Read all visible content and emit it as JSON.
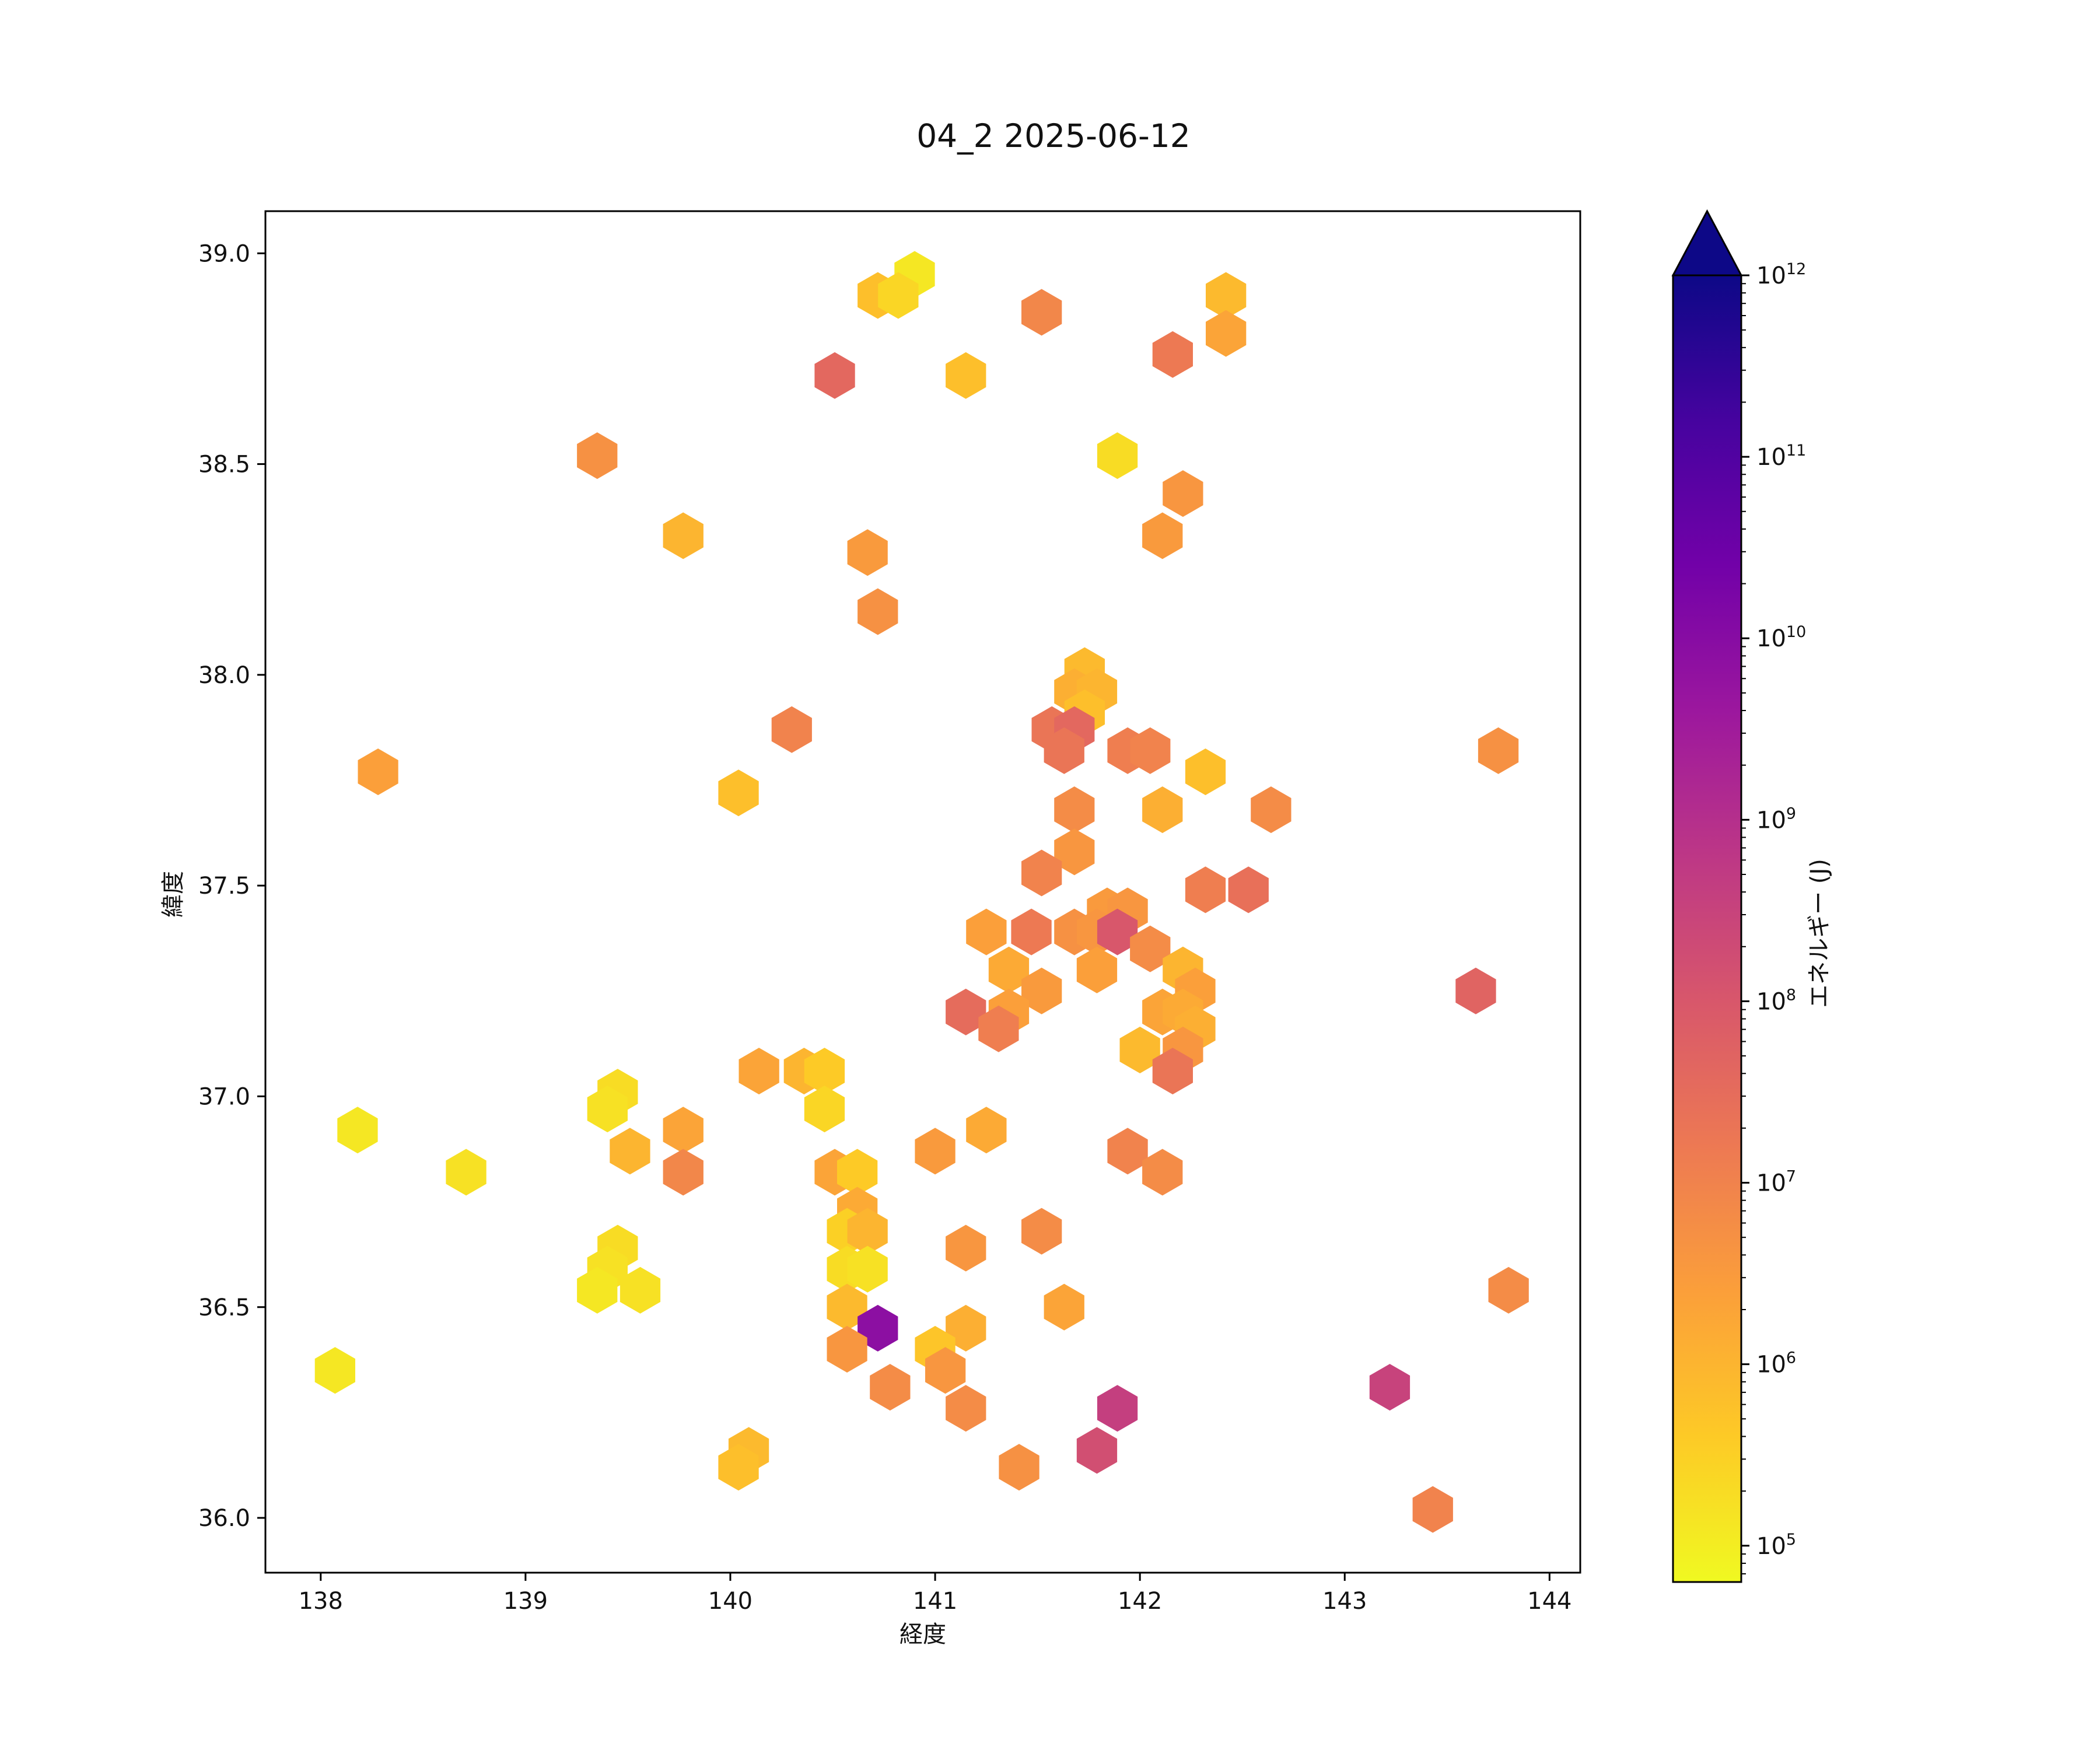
{
  "chart_data": {
    "type": "hexbin",
    "title": "04_2 2025-06-12",
    "xlabel": "経度",
    "ylabel": "緯度",
    "xlim": [
      137.73,
      144.15
    ],
    "ylim": [
      35.87,
      39.1
    ],
    "xticks": [
      138,
      139,
      140,
      141,
      142,
      143,
      144
    ],
    "xtick_labels": [
      "138",
      "139",
      "140",
      "141",
      "142",
      "143",
      "144"
    ],
    "yticks": [
      36.0,
      36.5,
      37.0,
      37.5,
      38.0,
      38.5,
      39.0
    ],
    "ytick_labels": [
      "36.0",
      "36.5",
      "37.0",
      "37.5",
      "38.0",
      "38.5",
      "39.0"
    ],
    "colorbar": {
      "label": "エネルギー (J)",
      "scale": "log",
      "colormap": "plasma_r",
      "range_exponent": [
        4.8,
        12
      ],
      "extend": "max",
      "tick_base": "10",
      "tick_exponents": [
        "5",
        "6",
        "7",
        "8",
        "9",
        "10",
        "11",
        "12"
      ]
    },
    "colormap_stops": [
      "#f0f921",
      "#fdca26",
      "#fb9f3a",
      "#ed7953",
      "#d8576b",
      "#bd3786",
      "#9c179e",
      "#7201a8",
      "#46039f",
      "#0d0887"
    ],
    "cells": [
      [
        140.9,
        38.95,
        5.1
      ],
      [
        140.72,
        38.9,
        5.8
      ],
      [
        140.82,
        38.9,
        5.4
      ],
      [
        142.42,
        38.9,
        5.9
      ],
      [
        141.52,
        38.86,
        6.9
      ],
      [
        142.42,
        38.81,
        6.3
      ],
      [
        142.16,
        38.76,
        7.2
      ],
      [
        140.51,
        38.71,
        7.6
      ],
      [
        141.15,
        38.71,
        5.8
      ],
      [
        141.89,
        38.52,
        5.3
      ],
      [
        139.35,
        38.52,
        6.7
      ],
      [
        142.21,
        38.43,
        6.6
      ],
      [
        139.77,
        38.33,
        6.0
      ],
      [
        142.11,
        38.33,
        6.5
      ],
      [
        140.67,
        38.29,
        6.5
      ],
      [
        140.72,
        38.15,
        6.7
      ],
      [
        141.73,
        38.01,
        5.9
      ],
      [
        141.68,
        37.96,
        6.1
      ],
      [
        141.79,
        37.96,
        6.0
      ],
      [
        141.73,
        37.91,
        5.8
      ],
      [
        140.3,
        37.87,
        7.0
      ],
      [
        141.57,
        37.87,
        7.3
      ],
      [
        141.68,
        37.87,
        7.6
      ],
      [
        141.63,
        37.82,
        7.3
      ],
      [
        141.94,
        37.82,
        7.1
      ],
      [
        142.05,
        37.82,
        7.0
      ],
      [
        143.75,
        37.82,
        6.7
      ],
      [
        138.28,
        37.77,
        6.4
      ],
      [
        142.32,
        37.77,
        5.8
      ],
      [
        140.04,
        37.72,
        5.8
      ],
      [
        141.68,
        37.68,
        6.8
      ],
      [
        142.11,
        37.68,
        6.1
      ],
      [
        142.64,
        37.68,
        6.8
      ],
      [
        141.68,
        37.58,
        6.6
      ],
      [
        141.52,
        37.53,
        7.0
      ],
      [
        142.32,
        37.49,
        7.1
      ],
      [
        142.53,
        37.49,
        7.4
      ],
      [
        141.84,
        37.44,
        6.5
      ],
      [
        141.94,
        37.44,
        6.6
      ],
      [
        141.25,
        37.39,
        6.4
      ],
      [
        141.47,
        37.39,
        7.2
      ],
      [
        141.68,
        37.39,
        6.7
      ],
      [
        141.79,
        37.39,
        6.6
      ],
      [
        141.89,
        37.39,
        8.0
      ],
      [
        142.05,
        37.35,
        6.8
      ],
      [
        141.36,
        37.3,
        6.2
      ],
      [
        141.79,
        37.3,
        6.4
      ],
      [
        142.21,
        37.3,
        6.0
      ],
      [
        141.52,
        37.25,
        6.5
      ],
      [
        142.27,
        37.25,
        6.4
      ],
      [
        143.64,
        37.25,
        7.7
      ],
      [
        141.15,
        37.2,
        7.5
      ],
      [
        141.36,
        37.2,
        6.4
      ],
      [
        142.11,
        37.2,
        6.3
      ],
      [
        142.21,
        37.2,
        6.2
      ],
      [
        141.31,
        37.16,
        7.1
      ],
      [
        142.27,
        37.16,
        6.1
      ],
      [
        142.0,
        37.11,
        5.9
      ],
      [
        142.21,
        37.11,
        6.6
      ],
      [
        140.14,
        37.06,
        6.3
      ],
      [
        140.36,
        37.06,
        6.0
      ],
      [
        140.46,
        37.06,
        5.6
      ],
      [
        142.16,
        37.06,
        7.3
      ],
      [
        139.45,
        37.01,
        5.3
      ],
      [
        139.4,
        36.97,
        5.2
      ],
      [
        140.46,
        36.97,
        5.4
      ],
      [
        138.18,
        36.92,
        5.1
      ],
      [
        139.77,
        36.92,
        6.3
      ],
      [
        141.25,
        36.92,
        6.2
      ],
      [
        139.51,
        36.87,
        6.0
      ],
      [
        141.0,
        36.87,
        6.5
      ],
      [
        141.94,
        36.87,
        7.0
      ],
      [
        138.71,
        36.82,
        5.2
      ],
      [
        139.77,
        36.82,
        6.9
      ],
      [
        140.51,
        36.82,
        6.3
      ],
      [
        140.62,
        36.82,
        5.6
      ],
      [
        142.11,
        36.82,
        6.8
      ],
      [
        140.62,
        36.73,
        6.2
      ],
      [
        140.57,
        36.68,
        5.5
      ],
      [
        140.67,
        36.68,
        6.0
      ],
      [
        141.52,
        36.68,
        6.8
      ],
      [
        141.15,
        36.64,
        6.6
      ],
      [
        139.45,
        36.64,
        5.3
      ],
      [
        139.4,
        36.59,
        5.2
      ],
      [
        140.57,
        36.59,
        5.3
      ],
      [
        140.67,
        36.59,
        5.2
      ],
      [
        139.35,
        36.54,
        5.1
      ],
      [
        139.56,
        36.54,
        5.2
      ],
      [
        143.8,
        36.54,
        6.8
      ],
      [
        140.57,
        36.5,
        5.9
      ],
      [
        141.63,
        36.5,
        6.3
      ],
      [
        140.72,
        36.45,
        9.9
      ],
      [
        141.15,
        36.45,
        6.1
      ],
      [
        140.57,
        36.4,
        6.6
      ],
      [
        141.0,
        36.4,
        5.7
      ],
      [
        138.07,
        36.35,
        5.1
      ],
      [
        141.05,
        36.35,
        6.6
      ],
      [
        140.78,
        36.31,
        6.8
      ],
      [
        143.22,
        36.31,
        8.5
      ],
      [
        141.15,
        36.26,
        6.8
      ],
      [
        141.89,
        36.26,
        8.6
      ],
      [
        140.09,
        36.16,
        5.9
      ],
      [
        141.79,
        36.16,
        8.2
      ],
      [
        140.04,
        36.12,
        5.8
      ],
      [
        141.41,
        36.12,
        6.7
      ],
      [
        143.43,
        36.02,
        7.0
      ]
    ]
  }
}
